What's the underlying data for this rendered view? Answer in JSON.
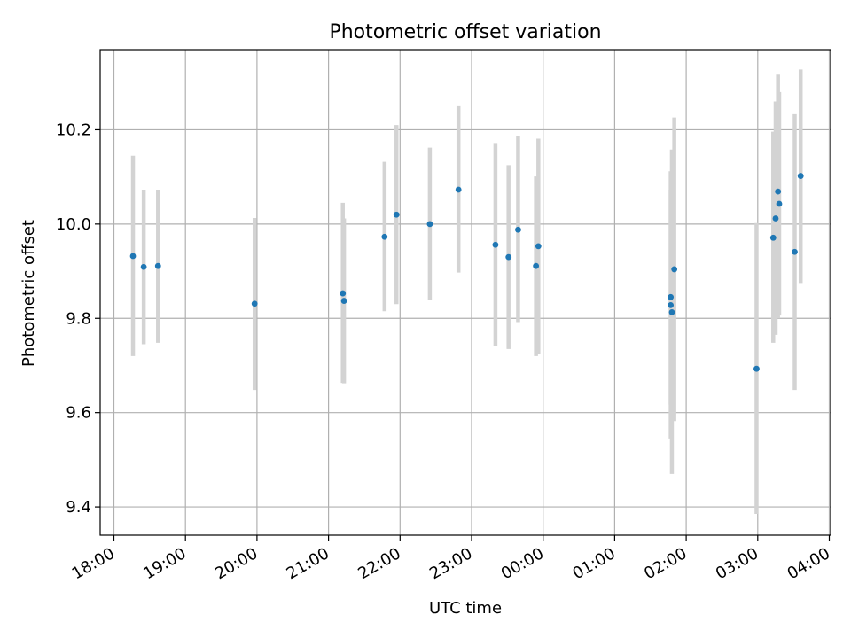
{
  "chart_data": {
    "type": "scatter",
    "title": "Photometric offset variation",
    "xlabel": "UTC time",
    "ylabel": "Photometric offset",
    "x_axis": "time",
    "x_range": [
      "18:00",
      "04:00"
    ],
    "ylim": [
      9.34,
      10.37
    ],
    "grid": true,
    "legend": "none",
    "x_ticks": [
      "18:00",
      "19:00",
      "20:00",
      "21:00",
      "22:00",
      "23:00",
      "00:00",
      "01:00",
      "02:00",
      "03:00",
      "04:00"
    ],
    "y_ticks": [
      "9.4",
      "9.6",
      "9.8",
      "10.0",
      "10.2"
    ],
    "colors": {
      "points": "#1f77b4",
      "error_bars": "#d3d3d3",
      "grid": "#b0b0b0"
    },
    "points": [
      {
        "t": "18:16",
        "y": 9.932,
        "lo": 9.72,
        "hi": 10.145
      },
      {
        "t": "18:25",
        "y": 9.909,
        "lo": 9.745,
        "hi": 10.073
      },
      {
        "t": "18:37",
        "y": 9.911,
        "lo": 9.748,
        "hi": 10.073
      },
      {
        "t": "19:58",
        "y": 9.831,
        "lo": 9.648,
        "hi": 10.013
      },
      {
        "t": "21:12",
        "y": 9.853,
        "lo": 9.663,
        "hi": 10.045
      },
      {
        "t": "21:13",
        "y": 9.837,
        "lo": 9.662,
        "hi": 10.012
      },
      {
        "t": "21:47",
        "y": 9.973,
        "lo": 9.815,
        "hi": 10.132
      },
      {
        "t": "21:57",
        "y": 10.02,
        "lo": 9.83,
        "hi": 10.21
      },
      {
        "t": "22:25",
        "y": 10.0,
        "lo": 9.838,
        "hi": 10.162
      },
      {
        "t": "22:49",
        "y": 10.073,
        "lo": 9.897,
        "hi": 10.25
      },
      {
        "t": "23:20",
        "y": 9.956,
        "lo": 9.742,
        "hi": 10.172
      },
      {
        "t": "23:31",
        "y": 9.93,
        "lo": 9.735,
        "hi": 10.125
      },
      {
        "t": "23:39",
        "y": 9.988,
        "lo": 9.792,
        "hi": 10.187
      },
      {
        "t": "23:54",
        "y": 9.911,
        "lo": 9.72,
        "hi": 10.101
      },
      {
        "t": "23:56",
        "y": 9.953,
        "lo": 9.724,
        "hi": 10.181
      },
      {
        "t": "01:47",
        "y": 9.845,
        "lo": 9.617,
        "hi": 10.073
      },
      {
        "t": "01:47",
        "y": 9.828,
        "lo": 9.545,
        "hi": 10.112
      },
      {
        "t": "01:48",
        "y": 9.813,
        "lo": 9.47,
        "hi": 10.158
      },
      {
        "t": "01:50",
        "y": 9.904,
        "lo": 9.582,
        "hi": 10.226
      },
      {
        "t": "02:59",
        "y": 9.693,
        "lo": 9.385,
        "hi": 10.002
      },
      {
        "t": "03:13",
        "y": 9.971,
        "lo": 9.748,
        "hi": 10.196
      },
      {
        "t": "03:15",
        "y": 10.012,
        "lo": 9.765,
        "hi": 10.26
      },
      {
        "t": "03:17",
        "y": 10.069,
        "lo": 9.8,
        "hi": 10.317
      },
      {
        "t": "03:18",
        "y": 10.043,
        "lo": 9.806,
        "hi": 10.28
      },
      {
        "t": "03:31",
        "y": 9.941,
        "lo": 9.648,
        "hi": 10.233
      },
      {
        "t": "03:36",
        "y": 10.102,
        "lo": 9.875,
        "hi": 10.328
      }
    ]
  }
}
